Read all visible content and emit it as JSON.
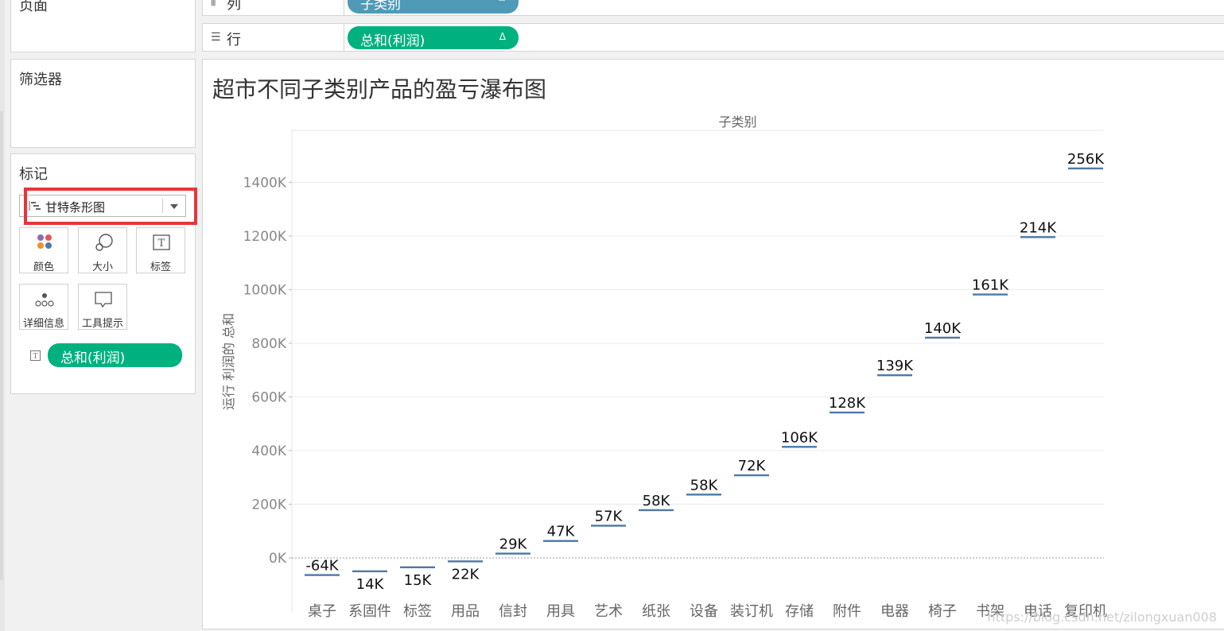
{
  "shelves": {
    "pages_title": "页面",
    "columns": {
      "icon": "columns-icon",
      "label": "列",
      "pill": "子类别",
      "pill_symbol": "−"
    },
    "rows": {
      "icon": "rows-icon",
      "label": "行",
      "pill": "总和(利润)",
      "pill_symbol": "Δ"
    }
  },
  "filters": {
    "title": "筛选器"
  },
  "marks": {
    "title": "标记",
    "mark_type": "甘特条形图",
    "buttons": [
      {
        "label": "颜色",
        "icon": "color-dots-icon"
      },
      {
        "label": "大小",
        "icon": "size-circles-icon"
      },
      {
        "label": "标签",
        "icon": "text-label-icon"
      },
      {
        "label": "详细信息",
        "icon": "detail-dots-icon"
      },
      {
        "label": "工具提示",
        "icon": "tooltip-speech-icon"
      }
    ],
    "field_pill": "总和(利润)",
    "field_icon": "text-mark-icon"
  },
  "viz": {
    "title": "超市不同子类别产品的盈亏瀑布图"
  },
  "chart_data": {
    "type": "bar",
    "subtype": "gantt-waterfall",
    "xlabel": "子类别",
    "ylabel": "运行 利润的 总和",
    "ylim": [
      -150,
      1560
    ],
    "yticks": [
      0,
      200,
      400,
      600,
      800,
      1000,
      1200,
      1400
    ],
    "ytick_labels": [
      "0K",
      "200K",
      "400K",
      "600K",
      "800K",
      "1000K",
      "1200K",
      "1400K"
    ],
    "grid": true,
    "categories": [
      "桌子",
      "系固件",
      "标签",
      "用品",
      "信封",
      "用具",
      "艺术",
      "纸张",
      "设备",
      "装订机",
      "存储",
      "附件",
      "电器",
      "椅子",
      "书架",
      "电话",
      "复印机"
    ],
    "values": [
      -64,
      14,
      15,
      22,
      29,
      47,
      57,
      58,
      58,
      72,
      106,
      128,
      139,
      140,
      161,
      214,
      256
    ],
    "value_labels": [
      "-64K",
      "14K",
      "15K",
      "22K",
      "29K",
      "47K",
      "57K",
      "58K",
      "58K",
      "72K",
      "106K",
      "128K",
      "139K",
      "140K",
      "161K",
      "214K",
      "256K"
    ],
    "running_total": [
      -64,
      -50,
      -35,
      -13,
      16,
      63,
      120,
      178,
      236,
      308,
      414,
      542,
      681,
      821,
      982,
      1196,
      1452
    ],
    "mark_color": "#4e79a7"
  },
  "watermark": "https://blog.csdn.net/zilongxuan008"
}
